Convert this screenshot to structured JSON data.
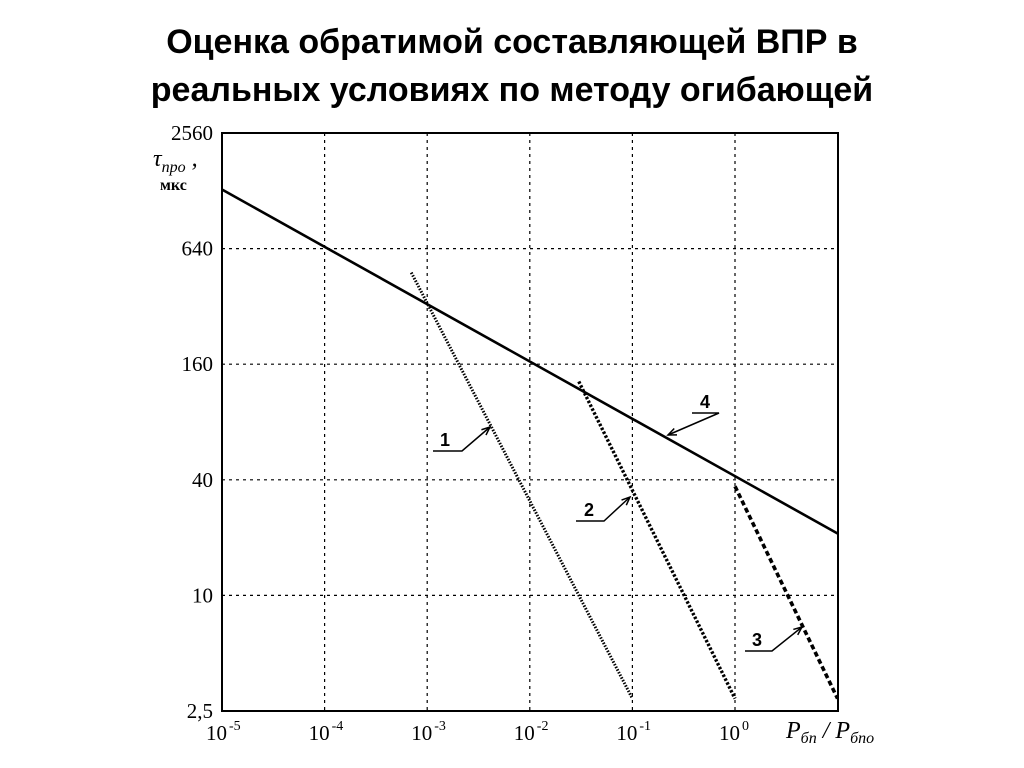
{
  "slide": {
    "title_line1": "Оценка обратимой составляющей ВПР в",
    "title_line2": "реальных условиях по методу огибающей"
  },
  "chart_data": {
    "type": "line",
    "title": "",
    "x_scale": "log10",
    "y_scale": "log",
    "xlim": [
      1e-05,
      1
    ],
    "ylim": [
      2.5,
      2560
    ],
    "grid": true,
    "x_ticks": [
      {
        "base": "10",
        "exp": "-5",
        "value": 1e-05
      },
      {
        "base": "10",
        "exp": "-4",
        "value": 0.0001
      },
      {
        "base": "10",
        "exp": "-3",
        "value": 0.001
      },
      {
        "base": "10",
        "exp": "-2",
        "value": 0.01
      },
      {
        "base": "10",
        "exp": "-1",
        "value": 0.1
      },
      {
        "base": "10",
        "exp": "0",
        "value": 1
      }
    ],
    "y_ticks": [
      "2,5",
      "10",
      "40",
      "160",
      "640",
      "2560"
    ],
    "y_tick_values": [
      2.5,
      10,
      40,
      160,
      640,
      2560
    ],
    "xlabel": {
      "p1": "P",
      "s1": "бп",
      "slash": " / ",
      "p2": "P",
      "s2": "бпо"
    },
    "ylabel": {
      "tau": "τ",
      "sub": "про",
      "comma": " ,",
      "unit": "мкс"
    },
    "series": [
      {
        "name": "1",
        "style": "dotted",
        "x": [
          0.0007,
          0.1
        ],
        "y": [
          480,
          2.9
        ]
      },
      {
        "name": "2",
        "style": "dashed-fine",
        "x": [
          0.03,
          1
        ],
        "y": [
          130,
          2.9
        ]
      },
      {
        "name": "3",
        "style": "dashed",
        "x": [
          1,
          10
        ],
        "y": [
          37,
          2.9
        ]
      },
      {
        "name": "4",
        "style": "solid",
        "x": [
          1e-05,
          10
        ],
        "y": [
          1300,
          21
        ]
      }
    ],
    "annotations": [
      {
        "text": "1",
        "series": "1"
      },
      {
        "text": "2",
        "series": "2"
      },
      {
        "text": "3",
        "series": "3"
      },
      {
        "text": "4",
        "series": "4"
      }
    ]
  }
}
